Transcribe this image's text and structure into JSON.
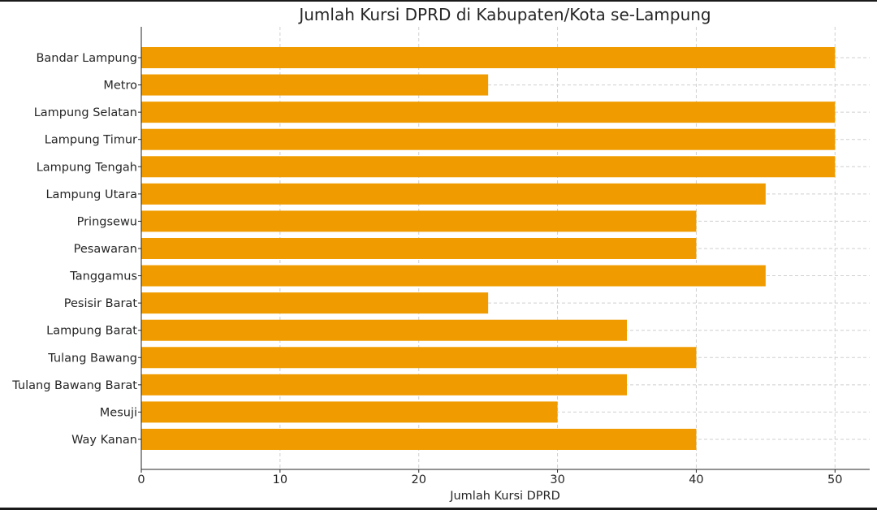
{
  "chart_data": {
    "type": "bar",
    "orientation": "horizontal",
    "title": "Jumlah Kursi DPRD di Kabupaten/Kota se-Lampung",
    "xlabel": "Jumlah Kursi DPRD",
    "ylabel": "",
    "categories": [
      "Bandar Lampung",
      "Metro",
      "Lampung Selatan",
      "Lampung Timur",
      "Lampung Tengah",
      "Lampung Utara",
      "Pringsewu",
      "Pesawaran",
      "Tanggamus",
      "Pesisir Barat",
      "Lampung Barat",
      "Tulang Bawang",
      "Tulang Bawang Barat",
      "Mesuji",
      "Way Kanan"
    ],
    "values": [
      50,
      25,
      50,
      50,
      50,
      45,
      40,
      40,
      45,
      25,
      35,
      40,
      35,
      30,
      40
    ],
    "xlim": [
      0,
      52.5
    ],
    "xticks": [
      0,
      10,
      20,
      30,
      40,
      50
    ],
    "grid": true,
    "bar_color": "#f09c00"
  }
}
